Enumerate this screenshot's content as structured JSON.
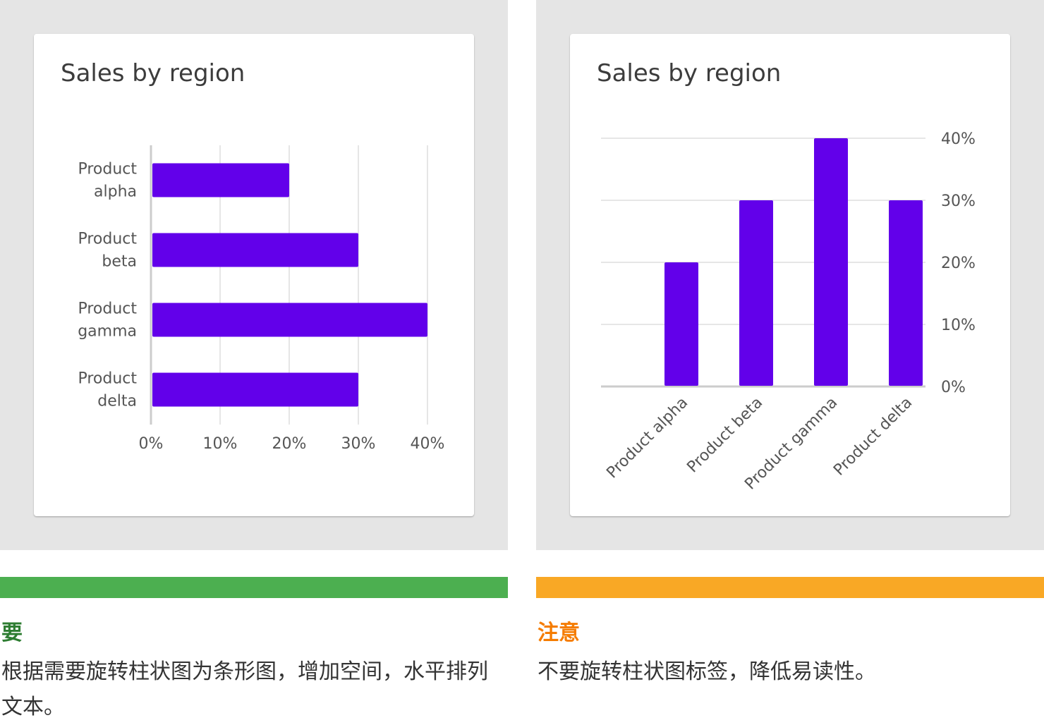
{
  "colors": {
    "bar": "#6200ea",
    "do": "#4caf50",
    "do_text": "#2e7d32",
    "caution": "#f9a825",
    "caution_text": "#f57c00"
  },
  "chart_data": [
    {
      "type": "bar",
      "orientation": "horizontal",
      "title": "Sales by region",
      "categories": [
        [
          "Product",
          "alpha"
        ],
        [
          "Product",
          "beta"
        ],
        [
          "Product",
          "gamma"
        ],
        [
          "Product",
          "delta"
        ]
      ],
      "values": [
        20,
        30,
        40,
        30
      ],
      "xlim": [
        0,
        40
      ],
      "ticks": [
        "0%",
        "10%",
        "20%",
        "30%",
        "40%"
      ],
      "grid": true
    },
    {
      "type": "bar",
      "orientation": "vertical",
      "title": "Sales by region",
      "categories": [
        "Product alpha",
        "Product beta",
        "Product gamma",
        "Product delta"
      ],
      "values": [
        20,
        30,
        40,
        30
      ],
      "ylim": [
        0,
        40
      ],
      "ticks": [
        "0%",
        "10%",
        "20%",
        "30%",
        "40%"
      ],
      "y_axis_side": "right",
      "label_rotation": -45,
      "grid": true
    }
  ],
  "guidance": {
    "do": {
      "title": "要",
      "text": "根据需要旋转柱状图为条形图，增加空间，水平排列文本。"
    },
    "caution": {
      "title": "注意",
      "text": "不要旋转柱状图标签，降低易读性。"
    }
  }
}
